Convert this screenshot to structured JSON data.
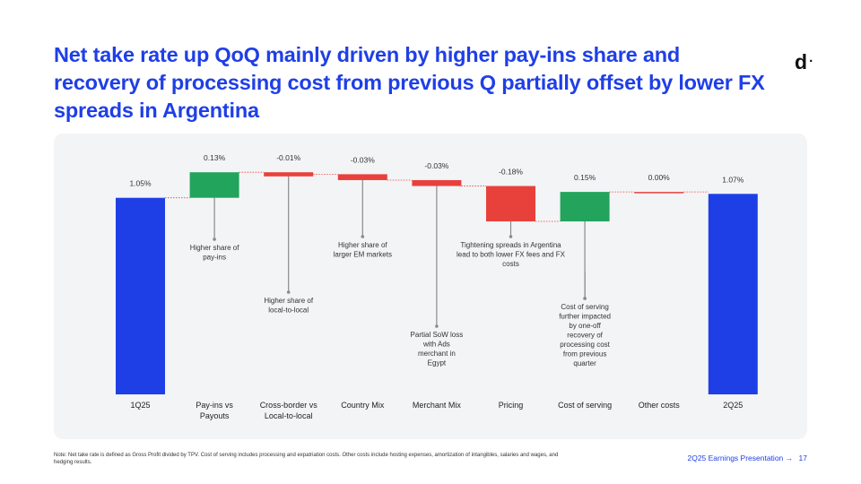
{
  "title": "Net take rate up QoQ mainly driven by higher pay-ins share and recovery of processing cost from previous Q partially offset by lower FX spreads in Argentina",
  "logo": {
    "letter": "d",
    "dot": "·"
  },
  "note": "Note: Net take rate is defined as Gross Profit divided by TPV. Cost of serving includes processing and expatriation costs. Other costs include hosting expenses, amortization of intangibles, salaries and wages, and hedging results.",
  "footer": {
    "label": "2Q25 Earnings Presentation",
    "arrow": "→",
    "page": "17"
  },
  "colors": {
    "total": "#1f3fe6",
    "increase": "#22a45d",
    "decrease": "#e8413b",
    "connector": "#e8413b",
    "annotation_line": "#8a8a8a"
  },
  "chart_data": {
    "type": "bar",
    "subtype": "waterfall",
    "categories": [
      "1Q25",
      "Pay-ins vs Payouts",
      "Cross-border vs Local-to-local",
      "Country Mix",
      "Merchant Mix",
      "Pricing",
      "Cost of serving",
      "Other costs",
      "2Q25"
    ],
    "category_lines": [
      [
        "1Q25"
      ],
      [
        "Pay-ins vs",
        "Payouts"
      ],
      [
        "Cross-border vs",
        "Local-to-local"
      ],
      [
        "Country Mix"
      ],
      [
        "Merchant Mix"
      ],
      [
        "Pricing"
      ],
      [
        "Cost of serving"
      ],
      [
        "Other costs"
      ],
      [
        "2Q25"
      ]
    ],
    "values": [
      1.05,
      0.13,
      -0.01,
      -0.03,
      -0.03,
      -0.18,
      0.15,
      0.0,
      1.07
    ],
    "value_labels": [
      "1.05%",
      "0.13%",
      "-0.01%",
      "-0.03%",
      "-0.03%",
      "-0.18%",
      "0.15%",
      "0.00%",
      "1.07%"
    ],
    "kinds": [
      "total",
      "delta",
      "delta",
      "delta",
      "delta",
      "delta",
      "delta",
      "delta",
      "total"
    ],
    "annotations": [
      {
        "index": 1,
        "lines": [
          "Higher share of",
          "pay-ins"
        ]
      },
      {
        "index": 2,
        "lines": [
          "Higher share of",
          "local-to-local"
        ]
      },
      {
        "index": 3,
        "lines": [
          "Higher share of",
          "larger EM markets"
        ]
      },
      {
        "index": 4,
        "lines": [
          "Partial SoW loss",
          "with Ads",
          "merchant in",
          "Egypt"
        ]
      },
      {
        "index": 5,
        "lines": [
          "Tightening spreads in Argentina",
          "lead to both lower FX fees and FX",
          "costs"
        ]
      },
      {
        "index": 6,
        "lines": [
          "Cost of serving",
          "further impacted",
          "by one-off",
          "recovery of",
          "processing cost",
          "from previous",
          "quarter"
        ]
      }
    ],
    "legend": "none",
    "grid": false
  }
}
